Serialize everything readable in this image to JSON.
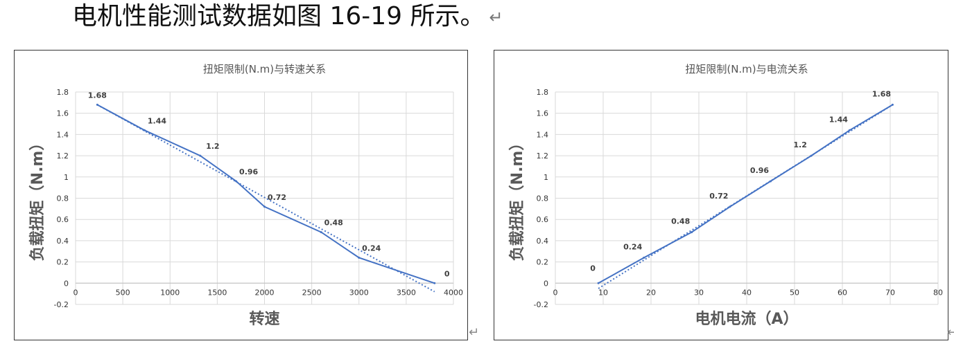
{
  "caption": {
    "text": "电机性能测试数据如图 16-19 所示。",
    "return_mark": "↵"
  },
  "return_mark": "↵",
  "colors": {
    "line": "#4472C4",
    "grid": "#d9d9d9",
    "axis_text": "#333333"
  },
  "chart_data": [
    {
      "type": "line",
      "title": "扭矩限制(N.m)与转速关系",
      "xlabel": "转速",
      "ylabel": "负载扭矩（N.m）",
      "xlim": [
        0,
        4000
      ],
      "ylim": [
        -0.2,
        1.8
      ],
      "x_ticks": [
        "0",
        "500",
        "1000",
        "1500",
        "2000",
        "2500",
        "3000",
        "3500",
        "4000"
      ],
      "y_ticks": [
        "-0.2",
        "0",
        "0.2",
        "0.4",
        "0.6",
        "0.8",
        "1",
        "1.2",
        "1.4",
        "1.6",
        "1.8"
      ],
      "grid": true,
      "legend": "none",
      "series": [
        {
          "x": [
            230,
            730,
            1320,
            1700,
            2000,
            2600,
            3000,
            3800
          ],
          "y": [
            1.68,
            1.44,
            1.2,
            0.96,
            0.72,
            0.48,
            0.24,
            0
          ],
          "labels": [
            "1.68",
            "1.44",
            "1.2",
            "0.96",
            "0.72",
            "0.48",
            "0.24",
            "0"
          ]
        }
      ],
      "trendline": {
        "style": "dotted",
        "x": [
          230,
          3800
        ],
        "y": [
          1.68,
          -0.08
        ]
      }
    },
    {
      "type": "line",
      "title": "扭矩限制(N.m)与电流关系",
      "xlabel": "电机电流（A）",
      "ylabel": "负载扭矩（N.m）",
      "xlim": [
        0,
        80
      ],
      "ylim": [
        -0.2,
        1.8
      ],
      "x_ticks": [
        "0",
        "10",
        "20",
        "30",
        "40",
        "50",
        "60",
        "70",
        "80"
      ],
      "y_ticks": [
        "-0.2",
        "0",
        "0.2",
        "0.4",
        "0.6",
        "0.8",
        "1",
        "1.2",
        "1.4",
        "1.6",
        "1.8"
      ],
      "grid": true,
      "legend": "none",
      "series": [
        {
          "x": [
            9,
            18.5,
            28.5,
            36.5,
            45,
            53.5,
            61.5,
            70.5
          ],
          "y": [
            0,
            0.24,
            0.48,
            0.72,
            0.96,
            1.2,
            1.44,
            1.68
          ],
          "labels": [
            "0",
            "0.24",
            "0.48",
            "0.72",
            "0.96",
            "1.2",
            "1.44",
            "1.68"
          ]
        }
      ],
      "trendline": {
        "style": "dotted",
        "x": [
          9,
          70.5
        ],
        "y": [
          -0.05,
          1.68
        ]
      }
    }
  ]
}
